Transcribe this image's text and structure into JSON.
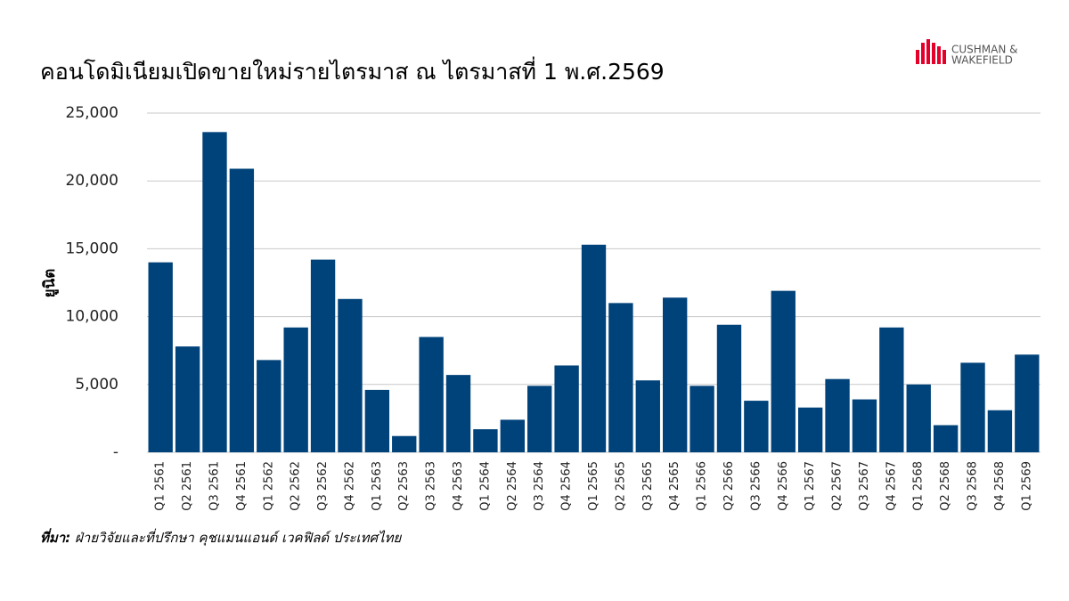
{
  "chart_data": {
    "type": "bar",
    "title": "คอนโดมิเนียมเปิดขายใหม่รายไตรมาส ณ ไตรมาสที่ 1 พ.ศ.2569",
    "y_label": "ยูนิต",
    "source_label": "ที่มา:",
    "source": "ฝ่ายวิจัยและที่ปรึกษา คุชแมนแอนด์ เวคฟิลด์ ประเทศไทย",
    "logo": [
      "CUSHMAN &",
      "WAKEFIELD"
    ],
    "categories": [
      "Q1 2561",
      "Q2 2561",
      "Q3 2561",
      "Q4 2561",
      "Q1 2562",
      "Q2 2562",
      "Q3 2562",
      "Q4 2562",
      "Q1 2563",
      "Q2 2563",
      "Q3 2563",
      "Q4 2563",
      "Q1 2564",
      "Q2 2564",
      "Q3 2564",
      "Q4 2564",
      "Q1 2565",
      "Q2 2565",
      "Q3 2565",
      "Q4 2565",
      "Q1 2566",
      "Q2 2566",
      "Q3 2566",
      "Q4 2566",
      "Q1 2567",
      "Q2 2567",
      "Q3 2567",
      "Q4 2567",
      "Q1 2568",
      "Q2 2568",
      "Q3 2568",
      "Q4 2568",
      "Q1 2569"
    ],
    "values": [
      14000,
      7800,
      23600,
      20900,
      6800,
      9200,
      14200,
      11300,
      4600,
      1200,
      8500,
      5700,
      1700,
      2400,
      4900,
      6400,
      15300,
      11000,
      5300,
      11400,
      4900,
      9400,
      3800,
      11900,
      3300,
      5400,
      3900,
      9200,
      5000,
      2000,
      6600,
      3100,
      7200
    ],
    "color": "#00427a",
    "ylim": [
      0,
      25000
    ],
    "yticks": [
      {
        "value": 0,
        "label": "-"
      },
      {
        "value": 5000,
        "label": "5,000"
      },
      {
        "value": 10000,
        "label": "10,000"
      },
      {
        "value": 15000,
        "label": "15,000"
      },
      {
        "value": 20000,
        "label": "20,000"
      },
      {
        "value": 25000,
        "label": "25,000"
      }
    ],
    "grid": true
  }
}
